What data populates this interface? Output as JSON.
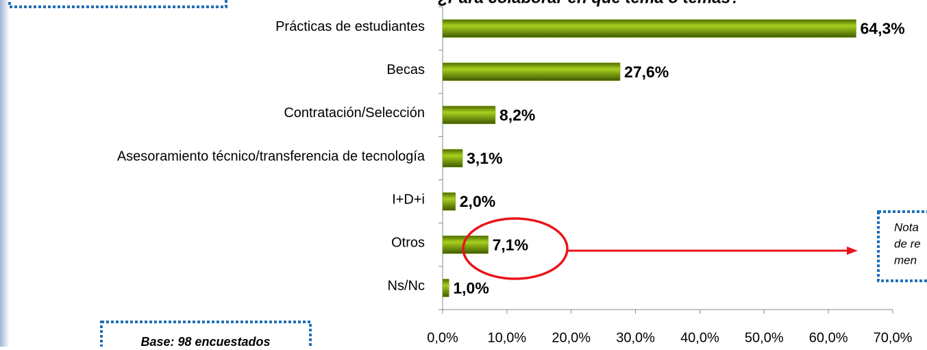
{
  "chart_data": {
    "type": "bar",
    "orientation": "horizontal",
    "title": "¿Para colaborar en qué tema o temas?",
    "categories": [
      "Prácticas de estudiantes",
      "Becas",
      "Contratación/Selección",
      "Asesoramiento técnico/transferencia de tecnología",
      "I+D+i",
      "Otros",
      "Ns/Nc"
    ],
    "values": [
      64.3,
      27.6,
      8.2,
      3.1,
      2.0,
      7.1,
      1.0
    ],
    "value_labels": [
      "64,3%",
      "27,6%",
      "8,2%",
      "3,1%",
      "2,0%",
      "7,1%",
      "1,0%"
    ],
    "color": "#7a9e00",
    "xlim": [
      0,
      70
    ],
    "xticks": [
      {
        "value": 0,
        "label": "0,0%"
      },
      {
        "value": 10,
        "label": "10,0%"
      },
      {
        "value": 20,
        "label": "20,0%"
      },
      {
        "value": 30,
        "label": "30,0%"
      },
      {
        "value": 40,
        "label": "40,0%"
      },
      {
        "value": 50,
        "label": "50,0%"
      },
      {
        "value": 60,
        "label": "60,0%"
      },
      {
        "value": 70,
        "label": "70,0%"
      }
    ],
    "note_lines": [
      "Nota",
      "de re",
      "men"
    ],
    "base_note": "Base: 98 encuestados"
  }
}
